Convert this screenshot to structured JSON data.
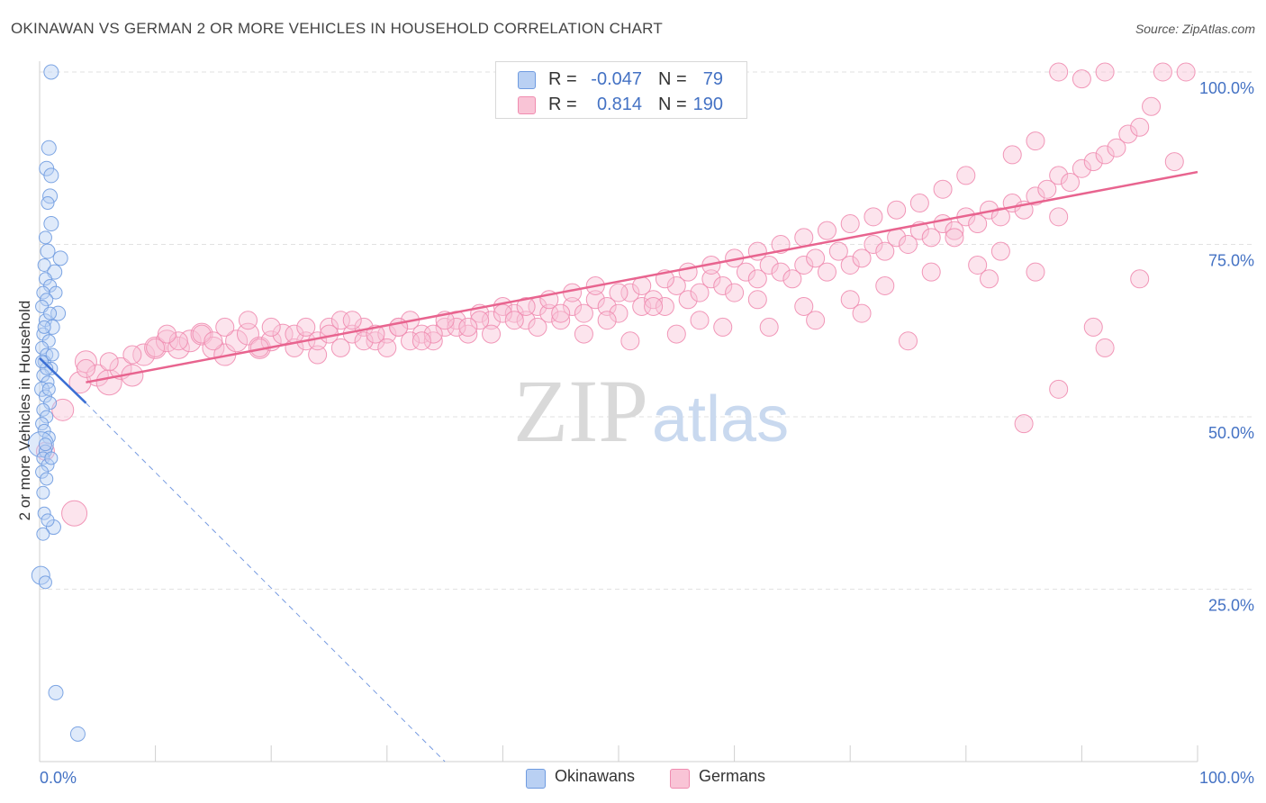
{
  "title": "OKINAWAN VS GERMAN 2 OR MORE VEHICLES IN HOUSEHOLD CORRELATION CHART",
  "source": "Source: ZipAtlas.com",
  "watermark": {
    "zip": "ZIP",
    "atlas": "atlas"
  },
  "legend": {
    "okinawans": {
      "r_label": "R =",
      "r_value": "-0.047",
      "n_label": "N =",
      "n_value": "79"
    },
    "germans": {
      "r_label": "R =",
      "r_value": "0.814",
      "n_label": "N =",
      "n_value": "190"
    }
  },
  "chart_data": {
    "type": "scatter",
    "title": "OKINAWAN VS GERMAN 2 OR MORE VEHICLES IN HOUSEHOLD CORRELATION CHART",
    "xlabel": "",
    "ylabel": "2 or more Vehicles in Household",
    "xlim": [
      0,
      100
    ],
    "ylim": [
      0,
      100
    ],
    "x_tick_labels": [
      "0.0%",
      "100.0%"
    ],
    "y_ticks": [
      25,
      50,
      75,
      100
    ],
    "y_tick_labels": [
      "25.0%",
      "50.0%",
      "75.0%",
      "100.0%"
    ],
    "grid": true,
    "colors": {
      "okinawans": "#6f9be0",
      "germans": "#f08cb0",
      "okinawan_line": "#3b6fd4",
      "german_line": "#e8648f"
    },
    "series": [
      {
        "name": "Okinawans",
        "r": -0.047,
        "n": 79,
        "trend": {
          "x": [
            0,
            4
          ],
          "y": [
            58.5,
            52.0
          ],
          "dashed_to": [
            35,
            0
          ]
        },
        "points": [
          [
            1.0,
            100,
            8
          ],
          [
            0.8,
            89,
            8
          ],
          [
            0.6,
            86,
            8
          ],
          [
            1.0,
            85,
            8
          ],
          [
            0.9,
            82,
            8
          ],
          [
            0.7,
            81,
            7
          ],
          [
            1.0,
            78,
            8
          ],
          [
            0.5,
            76,
            7
          ],
          [
            0.7,
            74,
            8
          ],
          [
            1.8,
            73,
            8
          ],
          [
            0.4,
            72,
            7
          ],
          [
            1.3,
            71,
            8
          ],
          [
            0.5,
            70,
            7
          ],
          [
            0.9,
            69,
            7
          ],
          [
            0.3,
            68,
            7
          ],
          [
            1.4,
            68,
            7
          ],
          [
            0.6,
            67,
            7
          ],
          [
            0.2,
            66,
            7
          ],
          [
            1.6,
            65,
            8
          ],
          [
            0.5,
            64,
            7
          ],
          [
            1.1,
            63,
            8
          ],
          [
            0.3,
            62,
            7
          ],
          [
            0.8,
            61,
            7
          ],
          [
            0.2,
            60,
            7
          ],
          [
            0.6,
            59,
            7
          ],
          [
            0.4,
            58,
            7
          ],
          [
            1.0,
            57,
            7
          ],
          [
            0.3,
            56,
            7
          ],
          [
            0.7,
            55,
            7
          ],
          [
            0.2,
            54,
            8
          ],
          [
            0.5,
            53,
            7
          ],
          [
            0.9,
            52,
            7
          ],
          [
            0.3,
            51,
            7
          ],
          [
            0.6,
            50,
            7
          ],
          [
            0.2,
            49,
            7
          ],
          [
            0.4,
            48,
            7
          ],
          [
            0.8,
            47,
            7
          ],
          [
            0.1,
            46,
            14
          ],
          [
            0.5,
            45,
            7
          ],
          [
            0.3,
            44,
            7
          ],
          [
            0.7,
            43,
            7
          ],
          [
            0.2,
            42,
            7
          ],
          [
            0.6,
            41,
            7
          ],
          [
            0.4,
            36,
            7
          ],
          [
            1.2,
            34,
            8
          ],
          [
            0.3,
            33,
            7
          ],
          [
            0.1,
            27,
            10
          ],
          [
            0.5,
            26,
            7
          ],
          [
            1.4,
            10,
            8
          ],
          [
            3.3,
            4,
            8
          ],
          [
            0.6,
            57,
            7
          ],
          [
            0.9,
            65,
            7
          ],
          [
            0.4,
            63,
            7
          ],
          [
            1.1,
            59,
            7
          ],
          [
            0.2,
            58,
            7
          ],
          [
            0.8,
            54,
            7
          ],
          [
            0.5,
            46,
            7
          ],
          [
            1.0,
            44,
            7
          ],
          [
            0.3,
            39,
            7
          ],
          [
            0.7,
            35,
            7
          ]
        ]
      },
      {
        "name": "Germans",
        "r": 0.814,
        "n": 190,
        "trend": {
          "x": [
            4,
            100
          ],
          "y": [
            55.0,
            85.5
          ]
        },
        "points": [
          [
            0.5,
            45,
            10
          ],
          [
            2.0,
            51,
            12
          ],
          [
            3.0,
            36,
            14
          ],
          [
            3.5,
            55,
            12
          ],
          [
            4.0,
            58,
            12
          ],
          [
            5.0,
            56,
            12
          ],
          [
            6.0,
            55,
            14
          ],
          [
            7.0,
            57,
            12
          ],
          [
            8.0,
            56,
            12
          ],
          [
            9.0,
            59,
            12
          ],
          [
            10.0,
            60,
            12
          ],
          [
            11.0,
            61,
            12
          ],
          [
            12.0,
            60,
            12
          ],
          [
            13.0,
            61,
            12
          ],
          [
            14.0,
            62,
            12
          ],
          [
            15.0,
            60,
            12
          ],
          [
            16.0,
            59,
            12
          ],
          [
            17.0,
            61,
            12
          ],
          [
            18.0,
            62,
            12
          ],
          [
            19.0,
            60,
            12
          ],
          [
            20.0,
            61,
            11
          ],
          [
            21.0,
            62,
            11
          ],
          [
            22.0,
            60,
            10
          ],
          [
            23.0,
            61,
            10
          ],
          [
            24.0,
            59,
            10
          ],
          [
            25.0,
            63,
            10
          ],
          [
            26.0,
            64,
            10
          ],
          [
            27.0,
            62,
            10
          ],
          [
            28.0,
            63,
            10
          ],
          [
            29.0,
            61,
            10
          ],
          [
            30.0,
            62,
            10
          ],
          [
            31.0,
            63,
            10
          ],
          [
            32.0,
            64,
            10
          ],
          [
            33.0,
            62,
            10
          ],
          [
            34.0,
            61,
            10
          ],
          [
            35.0,
            63,
            10
          ],
          [
            36.0,
            64,
            10
          ],
          [
            37.0,
            62,
            10
          ],
          [
            38.0,
            65,
            10
          ],
          [
            39.0,
            64,
            10
          ],
          [
            40.0,
            66,
            10
          ],
          [
            41.0,
            65,
            10
          ],
          [
            42.0,
            64,
            10
          ],
          [
            43.0,
            66,
            10
          ],
          [
            44.0,
            65,
            10
          ],
          [
            45.0,
            64,
            10
          ],
          [
            46.0,
            66,
            10
          ],
          [
            47.0,
            65,
            10
          ],
          [
            48.0,
            67,
            10
          ],
          [
            49.0,
            66,
            10
          ],
          [
            50.0,
            65,
            10
          ],
          [
            51.0,
            68,
            10
          ],
          [
            52.0,
            66,
            10
          ],
          [
            53.0,
            67,
            10
          ],
          [
            54.0,
            66,
            10
          ],
          [
            55.0,
            69,
            10
          ],
          [
            56.0,
            67,
            10
          ],
          [
            57.0,
            68,
            10
          ],
          [
            58.0,
            70,
            10
          ],
          [
            59.0,
            69,
            10
          ],
          [
            60.0,
            68,
            10
          ],
          [
            61.0,
            71,
            10
          ],
          [
            62.0,
            70,
            10
          ],
          [
            63.0,
            72,
            10
          ],
          [
            64.0,
            71,
            10
          ],
          [
            65.0,
            70,
            10
          ],
          [
            66.0,
            72,
            10
          ],
          [
            67.0,
            73,
            10
          ],
          [
            68.0,
            71,
            10
          ],
          [
            69.0,
            74,
            10
          ],
          [
            70.0,
            72,
            10
          ],
          [
            71.0,
            73,
            10
          ],
          [
            72.0,
            75,
            10
          ],
          [
            73.0,
            74,
            10
          ],
          [
            74.0,
            76,
            10
          ],
          [
            75.0,
            75,
            10
          ],
          [
            76.0,
            77,
            10
          ],
          [
            77.0,
            76,
            10
          ],
          [
            78.0,
            78,
            10
          ],
          [
            79.0,
            77,
            10
          ],
          [
            80.0,
            79,
            10
          ],
          [
            81.0,
            78,
            10
          ],
          [
            82.0,
            80,
            10
          ],
          [
            83.0,
            79,
            10
          ],
          [
            84.0,
            81,
            10
          ],
          [
            85.0,
            80,
            10
          ],
          [
            86.0,
            82,
            10
          ],
          [
            87.0,
            83,
            10
          ],
          [
            88.0,
            85,
            10
          ],
          [
            89.0,
            84,
            10
          ],
          [
            90.0,
            86,
            10
          ],
          [
            91.0,
            87,
            10
          ],
          [
            92.0,
            88,
            10
          ],
          [
            93.0,
            89,
            10
          ],
          [
            94.0,
            91,
            10
          ],
          [
            95.0,
            92,
            10
          ],
          [
            96.0,
            95,
            10
          ],
          [
            97.0,
            100,
            10
          ],
          [
            98.0,
            87,
            10
          ],
          [
            88.0,
            100,
            10
          ],
          [
            90.0,
            99,
            10
          ],
          [
            92.0,
            100,
            10
          ],
          [
            99.0,
            100,
            10
          ],
          [
            86.0,
            90,
            10
          ],
          [
            84.0,
            88,
            10
          ],
          [
            80.0,
            85,
            10
          ],
          [
            78.0,
            83,
            10
          ],
          [
            76.0,
            81,
            10
          ],
          [
            74.0,
            80,
            10
          ],
          [
            72.0,
            79,
            10
          ],
          [
            70.0,
            78,
            10
          ],
          [
            68.0,
            77,
            10
          ],
          [
            66.0,
            76,
            10
          ],
          [
            64.0,
            75,
            10
          ],
          [
            62.0,
            74,
            10
          ],
          [
            60.0,
            73,
            10
          ],
          [
            58.0,
            72,
            10
          ],
          [
            56.0,
            71,
            10
          ],
          [
            54.0,
            70,
            10
          ],
          [
            52.0,
            69,
            10
          ],
          [
            50.0,
            68,
            10
          ],
          [
            48.0,
            69,
            10
          ],
          [
            46.0,
            68,
            10
          ],
          [
            44.0,
            67,
            10
          ],
          [
            42.0,
            66,
            10
          ],
          [
            40.0,
            65,
            10
          ],
          [
            38.0,
            64,
            10
          ],
          [
            36.0,
            63,
            10
          ],
          [
            34.0,
            62,
            10
          ],
          [
            32.0,
            61,
            10
          ],
          [
            30.0,
            60,
            10
          ],
          [
            28.0,
            61,
            10
          ],
          [
            26.0,
            60,
            10
          ],
          [
            24.0,
            61,
            10
          ],
          [
            22.0,
            62,
            10
          ],
          [
            20.0,
            63,
            10
          ],
          [
            18.0,
            64,
            10
          ],
          [
            16.0,
            63,
            10
          ],
          [
            14.0,
            62,
            10
          ],
          [
            12.0,
            61,
            10
          ],
          [
            10.0,
            60,
            10
          ],
          [
            8.0,
            59,
            10
          ],
          [
            6.0,
            58,
            10
          ],
          [
            4.0,
            57,
            10
          ],
          [
            85.0,
            49,
            10
          ],
          [
            88.0,
            54,
            10
          ],
          [
            92.0,
            60,
            10
          ],
          [
            91.0,
            63,
            10
          ],
          [
            75.0,
            61,
            10
          ],
          [
            73.0,
            69,
            10
          ],
          [
            70.0,
            67,
            10
          ],
          [
            66.0,
            66,
            10
          ],
          [
            62.0,
            67,
            10
          ],
          [
            57.0,
            64,
            10
          ],
          [
            53.0,
            66,
            10
          ],
          [
            49.0,
            64,
            10
          ],
          [
            45.0,
            65,
            10
          ],
          [
            41.0,
            64,
            10
          ],
          [
            37.0,
            63,
            10
          ],
          [
            33.0,
            61,
            10
          ],
          [
            29.0,
            62,
            10
          ],
          [
            25.0,
            62,
            10
          ],
          [
            95.0,
            70,
            10
          ],
          [
            83.0,
            74,
            10
          ],
          [
            81.0,
            72,
            10
          ],
          [
            79.0,
            76,
            10
          ],
          [
            77.0,
            71,
            10
          ],
          [
            86.0,
            71,
            10
          ],
          [
            88.0,
            79,
            10
          ],
          [
            82.0,
            70,
            10
          ],
          [
            71.0,
            65,
            10
          ],
          [
            67.0,
            64,
            10
          ],
          [
            63.0,
            63,
            10
          ],
          [
            59.0,
            63,
            10
          ],
          [
            55.0,
            62,
            10
          ],
          [
            51.0,
            61,
            10
          ],
          [
            47.0,
            62,
            10
          ],
          [
            43.0,
            63,
            10
          ],
          [
            39.0,
            62,
            10
          ],
          [
            35.0,
            64,
            10
          ],
          [
            31.0,
            63,
            10
          ],
          [
            27.0,
            64,
            10
          ],
          [
            23.0,
            63,
            10
          ],
          [
            19.0,
            60,
            10
          ],
          [
            15.0,
            61,
            10
          ],
          [
            11.0,
            62,
            10
          ]
        ]
      }
    ]
  }
}
